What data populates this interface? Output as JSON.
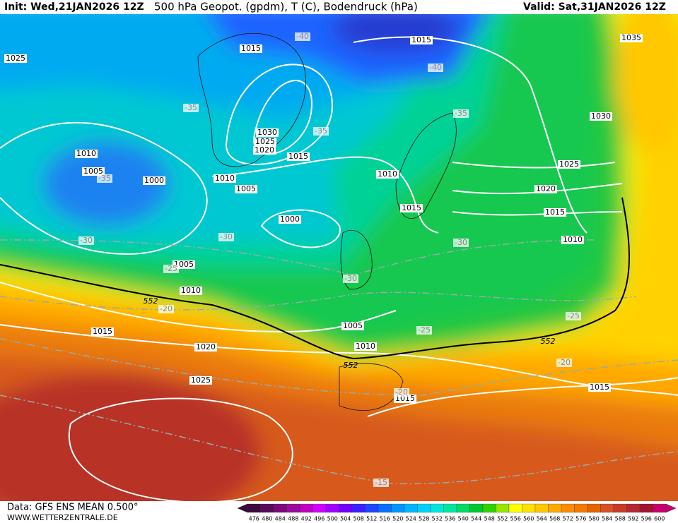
{
  "header": {
    "init": "Init: Wed,21JAN2026 12Z",
    "title": "500 hPa Geopot. (gpdm), T (C), Bodendruck (hPa)",
    "valid": "Valid: Sat,31JAN2026 12Z"
  },
  "isobar_labels": [
    "1025",
    "1015",
    "1015",
    "1035",
    "1030",
    "1025",
    "1020",
    "1015",
    "1010",
    "1005",
    "1000",
    "1010",
    "1005",
    "1010",
    "1015",
    "1030",
    "1025",
    "1020",
    "1015",
    "1010",
    "1000",
    "1005",
    "1010",
    "1015",
    "1020",
    "1005",
    "1010",
    "1025",
    "1015",
    "1015"
  ],
  "temperature_labels": [
    "-40",
    "-40",
    "-35",
    "-35",
    "-35",
    "-35",
    "-30",
    "-30",
    "-30",
    "-30",
    "-25",
    "-25",
    "-25",
    "-20",
    "-20",
    "-20",
    "-15"
  ],
  "height_labels": [
    "552",
    "552",
    "552"
  ],
  "colorbar": {
    "values": [
      476,
      480,
      484,
      488,
      492,
      496,
      500,
      504,
      508,
      512,
      516,
      520,
      524,
      528,
      532,
      536,
      540,
      544,
      548,
      552,
      556,
      560,
      564,
      568,
      572,
      576,
      580,
      584,
      588,
      592,
      596,
      600
    ],
    "colors": [
      "#3c0a3c",
      "#5a0a5a",
      "#7a0a7a",
      "#9b0a9b",
      "#c000c0",
      "#d200ff",
      "#a000ff",
      "#7000ff",
      "#3c1eff",
      "#1e46ff",
      "#0a6eff",
      "#0096ff",
      "#00b4ff",
      "#00d2ff",
      "#00e6dc",
      "#00e6a0",
      "#00dc64",
      "#00c832",
      "#32d200",
      "#96e600",
      "#ffff00",
      "#ffe100",
      "#ffc800",
      "#ffaa00",
      "#ff8c00",
      "#f57800",
      "#e66400",
      "#d75028",
      "#c83c28",
      "#b42832",
      "#a01432",
      "#c8006e"
    ]
  },
  "footer": {
    "source": "Data: GFS ENS MEAN 0.500°",
    "site": "WWW.WETTERZENTRALE.DE"
  }
}
